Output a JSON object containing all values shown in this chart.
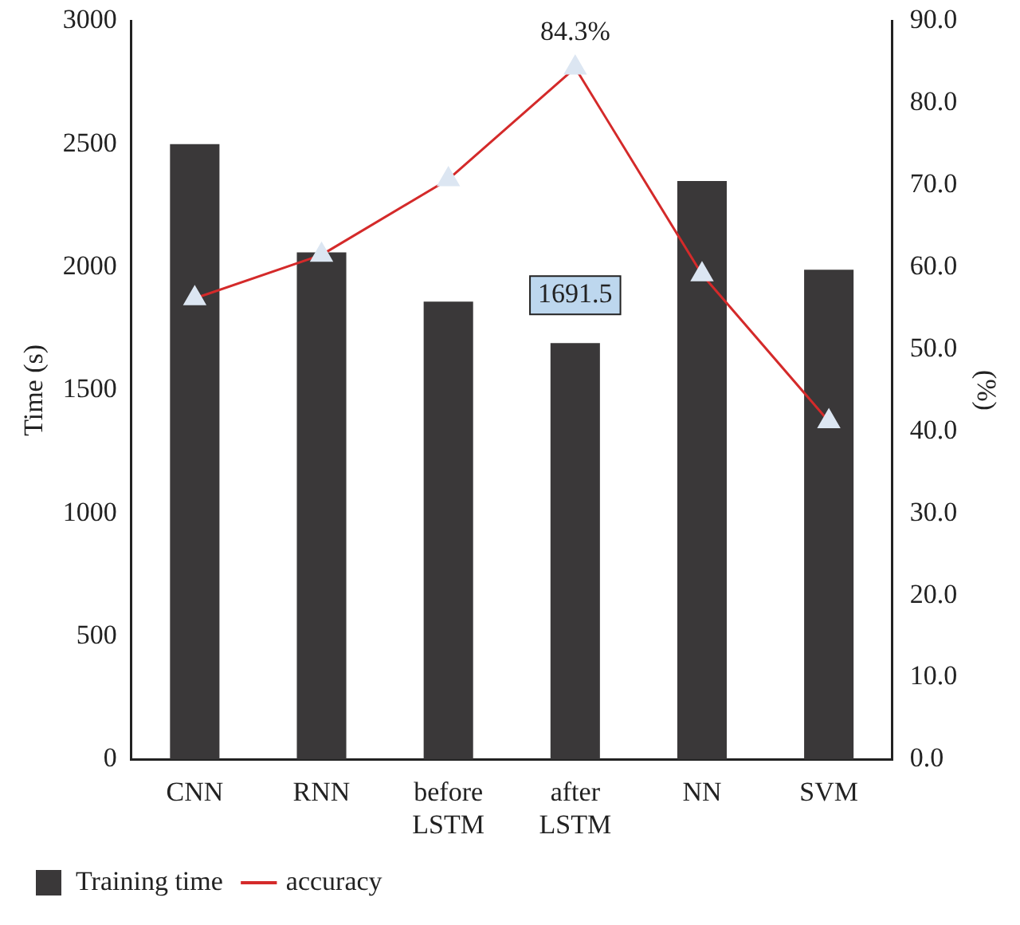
{
  "chart_data": {
    "type": "bar",
    "categories": [
      "CNN",
      "RNN",
      "before LSTM",
      "after LSTM",
      "NN",
      "SVM"
    ],
    "series": [
      {
        "name": "Training time",
        "color": "#3a3839",
        "values": [
          2500,
          2060,
          1860,
          1691.5,
          2350,
          1990
        ],
        "value_labels": [
          null,
          null,
          null,
          "1691.5",
          null,
          null
        ]
      },
      {
        "name": "accuracy",
        "type": "line",
        "axis": "y2",
        "color": "#d42a2a",
        "values": [
          56.2,
          61.5,
          70.7,
          84.3,
          59.1,
          41.2
        ],
        "value_labels": [
          null,
          null,
          null,
          "84.3%",
          null,
          null
        ]
      }
    ],
    "ylabel": "Time (s)",
    "y2label": "(%)",
    "ylim": [
      0,
      3000
    ],
    "yticks": [
      0,
      500,
      1000,
      1500,
      2000,
      2500,
      3000
    ],
    "y2lim": [
      0,
      90
    ],
    "y2ticks": [
      {
        "value": 0,
        "label": "0.0"
      },
      {
        "value": 10,
        "label": "10.0"
      },
      {
        "value": 20,
        "label": "20.0"
      },
      {
        "value": 30,
        "label": "30.0"
      },
      {
        "value": 40,
        "label": "40.0"
      },
      {
        "value": 50,
        "label": "50.0"
      },
      {
        "value": 60,
        "label": "60.0"
      },
      {
        "value": 70,
        "label": "70.0"
      },
      {
        "value": 80,
        "label": "80.0"
      },
      {
        "value": 90,
        "label": "90.0"
      }
    ],
    "grid": false,
    "legend": "bottom left",
    "marker": "triangle",
    "line_style": "solid"
  }
}
